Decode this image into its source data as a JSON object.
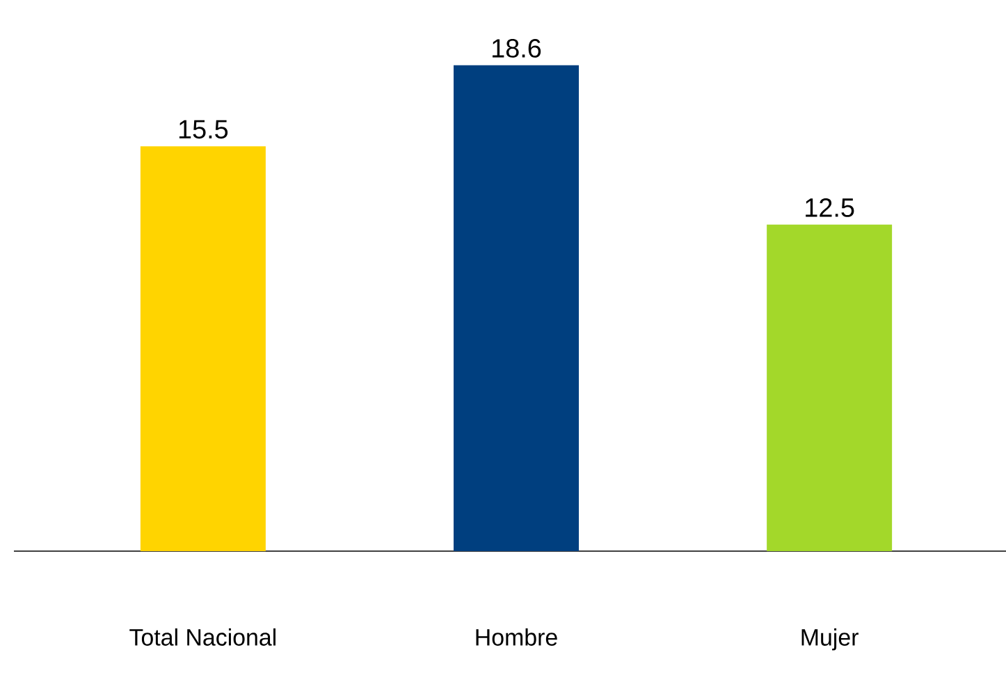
{
  "chart_data": {
    "type": "bar",
    "categories": [
      "Total Nacional",
      "Hombre",
      "Mujer"
    ],
    "values": [
      15.5,
      18.6,
      12.5
    ],
    "colors": [
      "#ffd400",
      "#003f7f",
      "#a3d82a"
    ],
    "data_labels": true
  }
}
